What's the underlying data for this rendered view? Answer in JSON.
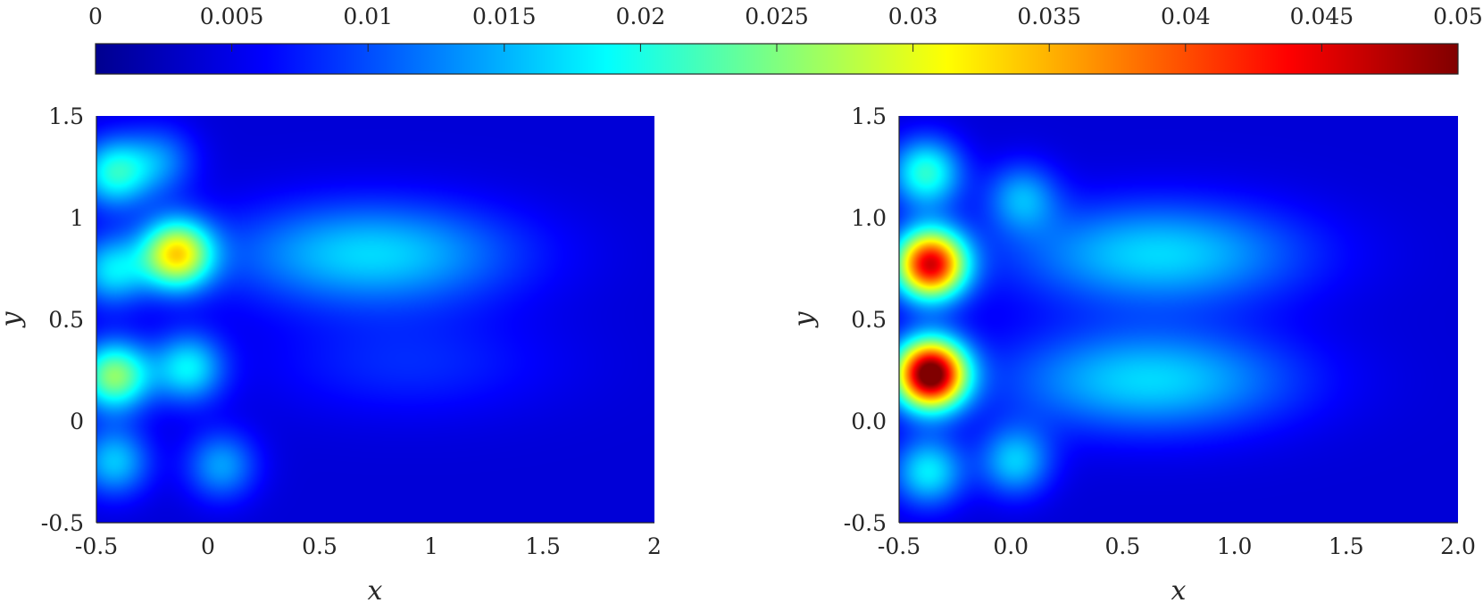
{
  "chart_data": [
    {
      "type": "heatmap",
      "title": "",
      "xlabel": "x",
      "ylabel": "y",
      "xlim": [
        -0.5,
        2.0
      ],
      "ylim": [
        -0.5,
        1.5
      ],
      "xticks": [
        "-0.5",
        "0",
        "0.5",
        "1",
        "1.5",
        "2"
      ],
      "yticks": [
        "-0.5",
        "0",
        "0.5",
        "1",
        "1.5"
      ],
      "colormap": "jet",
      "clim": [
        0,
        0.05
      ],
      "blobs": [
        {
          "x": -0.42,
          "y": 1.22,
          "value": 0.016
        },
        {
          "x": -0.21,
          "y": 1.28,
          "value": 0.008
        },
        {
          "x": -0.43,
          "y": 0.74,
          "value": 0.013
        },
        {
          "x": -0.14,
          "y": 0.82,
          "value": 0.028
        },
        {
          "x": 0.73,
          "y": 0.82,
          "value": 0.013
        },
        {
          "x": -0.42,
          "y": 0.22,
          "value": 0.022
        },
        {
          "x": -0.09,
          "y": 0.26,
          "value": 0.014
        },
        {
          "x": 0.9,
          "y": 0.28,
          "value": 0.004
        },
        {
          "x": -0.42,
          "y": -0.2,
          "value": 0.012
        },
        {
          "x": 0.06,
          "y": -0.22,
          "value": 0.01
        }
      ]
    },
    {
      "type": "heatmap",
      "title": "",
      "xlabel": "x",
      "ylabel": "y",
      "xlim": [
        -0.5,
        2.0
      ],
      "ylim": [
        -0.5,
        1.5
      ],
      "xticks": [
        "-0.5",
        "0.0",
        "0.5",
        "1.0",
        "1.5",
        "2.0"
      ],
      "yticks": [
        "-0.5",
        "0.0",
        "0.5",
        "1.0",
        "1.5"
      ],
      "colormap": "jet",
      "clim": [
        0,
        0.05
      ],
      "blobs": [
        {
          "x": -0.38,
          "y": 1.22,
          "value": 0.017
        },
        {
          "x": -0.36,
          "y": 0.77,
          "value": 0.042
        },
        {
          "x": -0.36,
          "y": 0.23,
          "value": 0.05
        },
        {
          "x": -0.37,
          "y": -0.25,
          "value": 0.014
        },
        {
          "x": 0.66,
          "y": 0.82,
          "value": 0.013
        },
        {
          "x": 0.62,
          "y": 0.2,
          "value": 0.013
        },
        {
          "x": 0.05,
          "y": 1.1,
          "value": 0.01
        },
        {
          "x": 0.02,
          "y": -0.2,
          "value": 0.012
        }
      ]
    }
  ],
  "colorbar": {
    "ticks": [
      "0",
      "0.005",
      "0.01",
      "0.015",
      "0.02",
      "0.025",
      "0.03",
      "0.035",
      "0.04",
      "0.045",
      "0.05"
    ],
    "range": [
      0,
      0.05
    ],
    "location": "top",
    "colormap": "jet"
  }
}
